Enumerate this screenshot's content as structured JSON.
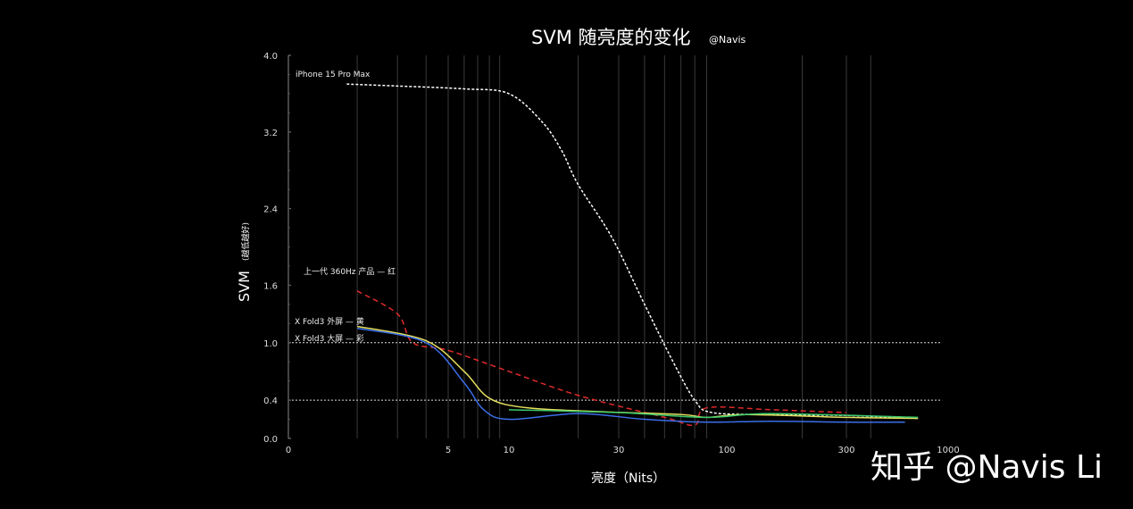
{
  "chart_data": {
    "type": "line",
    "title": "SVM 随亮度的变化",
    "title_credit": "@Navis",
    "xlabel": "亮度（Nits）",
    "ylabel": "SVM",
    "ylabel_note": "(越低越好)",
    "x_scale": "log",
    "ylim": [
      0,
      4.0
    ],
    "x_ticks": [
      {
        "value": 0,
        "label": "0"
      },
      {
        "value": 5,
        "label": "5"
      },
      {
        "value": 10,
        "label": "10"
      },
      {
        "value": 30,
        "label": "30"
      },
      {
        "value": 100,
        "label": "100"
      },
      {
        "value": 300,
        "label": "300"
      },
      {
        "value": 1000,
        "label": "1000"
      }
    ],
    "y_ticks": [
      {
        "value": 0.0,
        "label": "0.0"
      },
      {
        "value": 0.4,
        "label": "0.4"
      },
      {
        "value": 1.0,
        "label": "1.0"
      },
      {
        "value": 1.6,
        "label": "1.6"
      },
      {
        "value": 2.4,
        "label": "2.4"
      },
      {
        "value": 3.2,
        "label": "3.2"
      },
      {
        "value": 4.0,
        "label": "4.0"
      }
    ],
    "reference_lines": [
      1.0,
      0.4
    ],
    "grid": "vertical",
    "series": [
      {
        "name": "iPhone 15 Pro Max",
        "color": "#ffffff",
        "dash": true,
        "points": [
          [
            1.8,
            3.7
          ],
          [
            3,
            3.68
          ],
          [
            6,
            3.65
          ],
          [
            10,
            3.6
          ],
          [
            14,
            3.3
          ],
          [
            17,
            3.0
          ],
          [
            20,
            2.65
          ],
          [
            28,
            2.1
          ],
          [
            40,
            1.4
          ],
          [
            55,
            0.8
          ],
          [
            70,
            0.4
          ],
          [
            85,
            0.27
          ],
          [
            150,
            0.25
          ],
          [
            300,
            0.24
          ],
          [
            700,
            0.21
          ]
        ]
      },
      {
        "name": "上一代 360Hz 产品 — 红",
        "color": "#e02a2a",
        "dash": true,
        "points": [
          [
            2,
            1.54
          ],
          [
            3,
            1.3
          ],
          [
            3.5,
            1.0
          ],
          [
            5,
            0.92
          ],
          [
            10,
            0.7
          ],
          [
            20,
            0.45
          ],
          [
            50,
            0.22
          ],
          [
            70,
            0.14
          ],
          [
            80,
            0.32
          ],
          [
            150,
            0.3
          ],
          [
            300,
            0.27
          ]
        ]
      },
      {
        "name": "X Fold3 外屏 — 黄",
        "color": "#e6e060",
        "dash": false,
        "points": [
          [
            2,
            1.17
          ],
          [
            4,
            1.02
          ],
          [
            6,
            0.7
          ],
          [
            8,
            0.42
          ],
          [
            12,
            0.32
          ],
          [
            25,
            0.28
          ],
          [
            60,
            0.25
          ],
          [
            80,
            0.22
          ],
          [
            120,
            0.25
          ],
          [
            300,
            0.22
          ],
          [
            700,
            0.21
          ]
        ]
      },
      {
        "name": "X Fold3 大屏 — 彩",
        "color": "#3b6ee8",
        "dash": false,
        "points": [
          [
            2,
            1.15
          ],
          [
            4,
            1.0
          ],
          [
            6,
            0.58
          ],
          [
            7.5,
            0.3
          ],
          [
            10,
            0.2
          ],
          [
            20,
            0.26
          ],
          [
            40,
            0.2
          ],
          [
            80,
            0.17
          ],
          [
            150,
            0.18
          ],
          [
            300,
            0.17
          ],
          [
            600,
            0.17
          ]
        ]
      },
      {
        "name": "",
        "color": "#3cc86a",
        "dash": false,
        "points": [
          [
            10,
            0.3
          ],
          [
            30,
            0.27
          ],
          [
            80,
            0.22
          ],
          [
            150,
            0.26
          ],
          [
            700,
            0.22
          ]
        ]
      }
    ],
    "annotations": [
      {
        "text": "iPhone 15 Pro Max"
      },
      {
        "text": "上一代 360Hz 产品 — 红"
      },
      {
        "text": "X Fold3 外屏 — 黄"
      },
      {
        "text": "X Fold3 大屏 — 彩"
      }
    ]
  },
  "watermark": "知乎 @Navis Li"
}
